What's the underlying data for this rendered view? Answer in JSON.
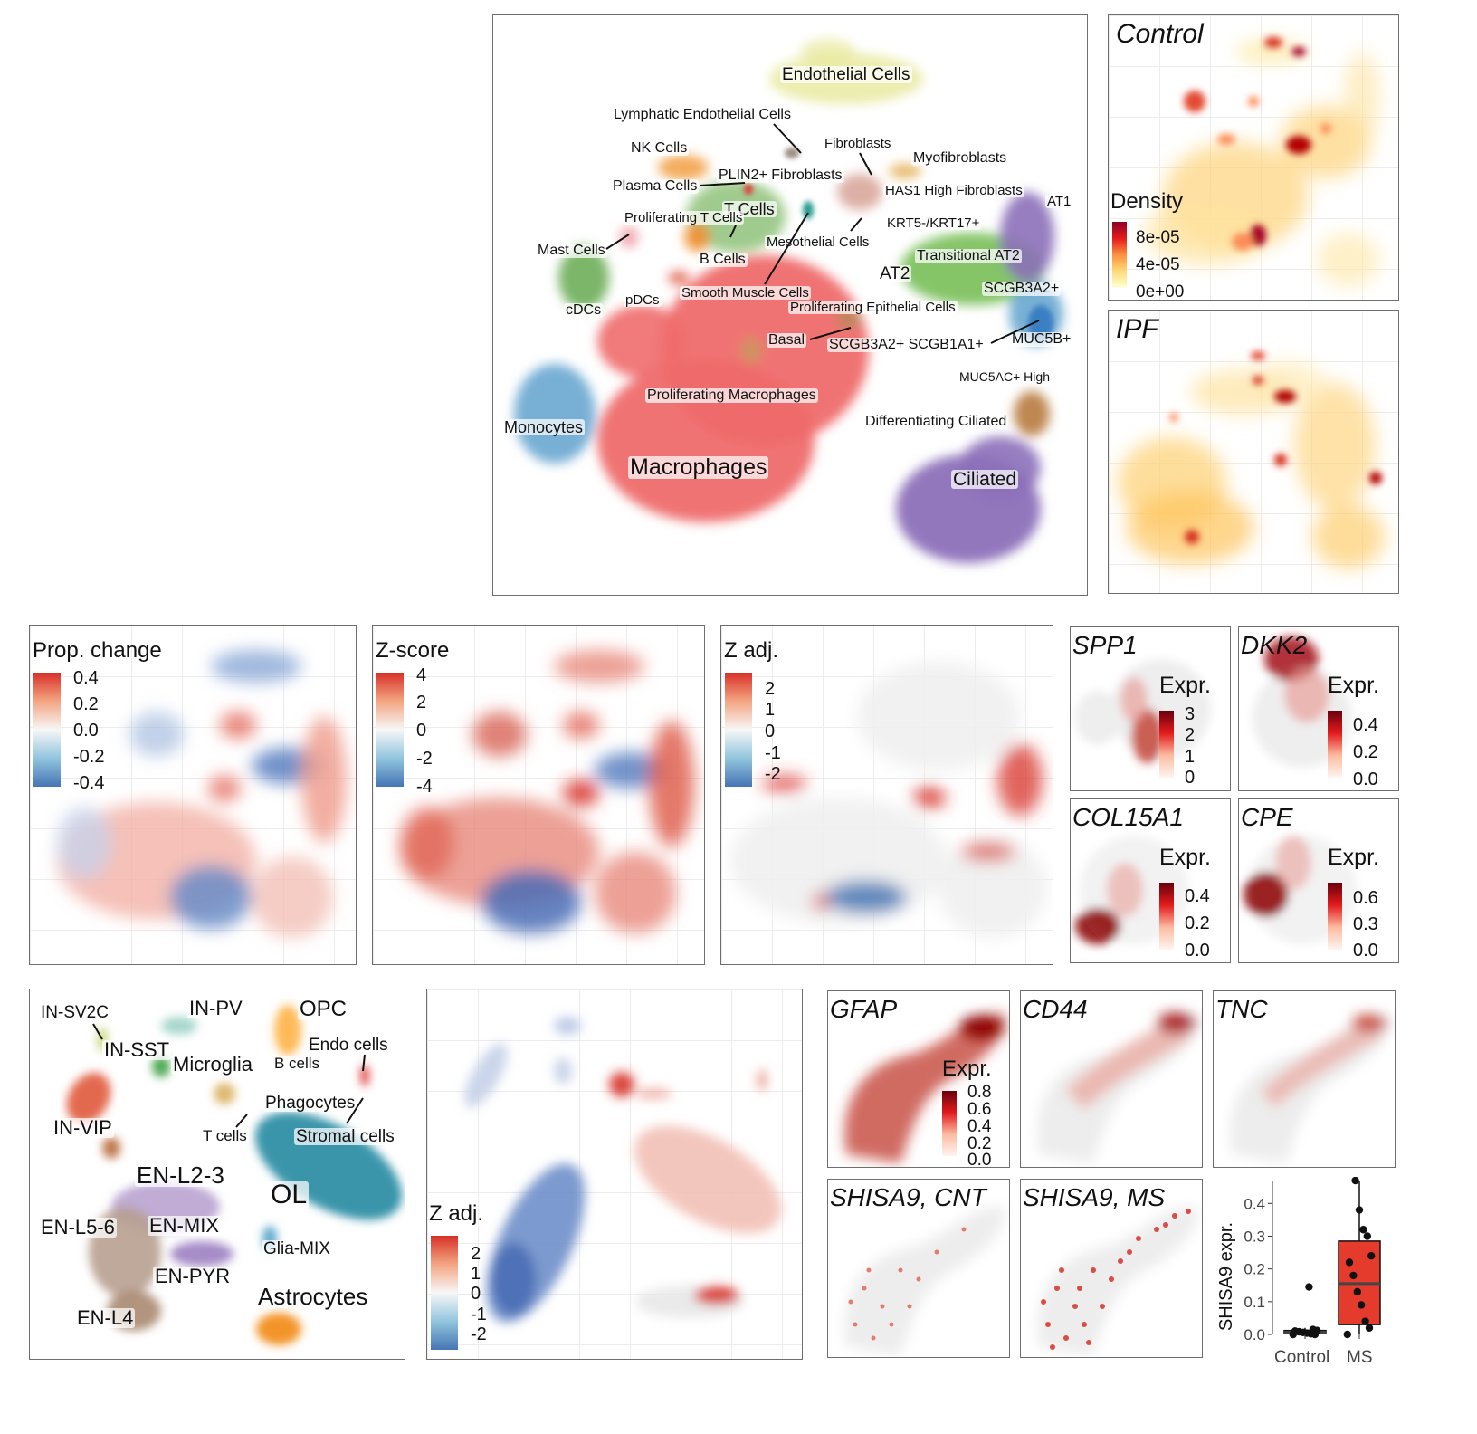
{
  "top_umap": {
    "labels": {
      "endothelial": "Endothelial Cells",
      "lymphatic": "Lymphatic Endothelial Cells",
      "nk": "NK Cells",
      "fibroblasts": "Fibroblasts",
      "myofibroblasts": "Myofibroblasts",
      "plin2": "PLIN2+ Fibroblasts",
      "plasma": "Plasma Cells",
      "has1": "HAS1 High Fibroblasts",
      "at1": "AT1",
      "tcells": "T Cells",
      "prolif_t": "Proliferating T Cells",
      "krt5": "KRT5-/KRT17+",
      "mast": "Mast Cells",
      "mesothelial": "Mesothelial Cells",
      "transitional": "Transitional AT2",
      "bcells": "B Cells",
      "at2": "AT2",
      "smooth": "Smooth Muscle Cells",
      "scgb3a2": "SCGB3A2+",
      "pdcs": "pDCs",
      "cdcs": "cDCs",
      "prolif_epi": "Proliferating Epithelial Cells",
      "basal": "Basal",
      "scgb3a2_scgb1a1": "SCGB3A2+ SCGB1A1+",
      "muc5b": "MUC5B+",
      "muc5ac": "MUC5AC+ High",
      "monocytes": "Monocytes",
      "prolif_mac": "Proliferating Macrophages",
      "diff_ciliated": "Differentiating Ciliated",
      "macrophages": "Macrophages",
      "ciliated": "Ciliated"
    }
  },
  "density_panels": {
    "control_title": "Control",
    "ipf_title": "IPF",
    "legend_title": "Density",
    "legend_ticks": [
      "8e-05",
      "4e-05",
      "0e+00"
    ]
  },
  "mid_panels": {
    "prop": {
      "title": "Prop. change",
      "ticks": [
        "0.4",
        "0.2",
        "0.0",
        "-0.2",
        "-0.4"
      ]
    },
    "z": {
      "title": "Z-score",
      "ticks": [
        "4",
        "2",
        "0",
        "-2",
        "-4"
      ]
    },
    "zadj": {
      "title": "Z adj.",
      "ticks": [
        "2",
        "1",
        "0",
        "-1",
        "-2"
      ]
    }
  },
  "gene_panels": {
    "expr_label": "Expr.",
    "spp1": {
      "title": "SPP1",
      "ticks": [
        "3",
        "2",
        "1",
        "0"
      ]
    },
    "dkk2": {
      "title": "DKK2",
      "ticks": [
        "0.4",
        "0.2",
        "0.0"
      ]
    },
    "col15a1": {
      "title": "COL15A1",
      "ticks": [
        "0.4",
        "0.2",
        "0.0"
      ]
    },
    "cpe": {
      "title": "CPE",
      "ticks": [
        "0.6",
        "0.3",
        "0.0"
      ]
    }
  },
  "brain_umap": {
    "labels": {
      "in_sv2c": "IN-SV2C",
      "in_pv": "IN-PV",
      "opc": "OPC",
      "in_sst": "IN-SST",
      "endo": "Endo cells",
      "microglia": "Microglia",
      "bcells": "B cells",
      "phagocytes": "Phagocytes",
      "in_vip": "IN-VIP",
      "tcells": "T cells",
      "stromal": "Stromal cells",
      "en_l23": "EN-L2-3",
      "ol": "OL",
      "en_l56": "EN-L5-6",
      "en_mix": "EN-MIX",
      "glia_mix": "Glia-MIX",
      "en_pyr": "EN-PYR",
      "astrocytes": "Astrocytes",
      "en_l4": "EN-L4"
    }
  },
  "brain_zadj": {
    "title": "Z adj.",
    "ticks": [
      "2",
      "1",
      "0",
      "-1",
      "-2"
    ]
  },
  "astro_genes": {
    "gfap": {
      "title": "GFAP",
      "legend_title": "Expr.",
      "ticks": [
        "0.8",
        "0.6",
        "0.4",
        "0.2",
        "0.0"
      ]
    },
    "cd44": {
      "title": "CD44"
    },
    "tnc": {
      "title": "TNC"
    },
    "shisa9_cnt": {
      "title": "SHISA9, CNT"
    },
    "shisa9_ms": {
      "title": "SHISA9, MS"
    }
  },
  "chart_data": {
    "type": "box",
    "ylabel": "SHISA9 expr.",
    "categories": [
      "Control",
      "MS"
    ],
    "yticks": [
      "0.0",
      "0.1",
      "0.2",
      "0.3",
      "0.4"
    ],
    "ylim": [
      0,
      0.47
    ],
    "boxes": [
      {
        "name": "Control",
        "q1": 0.003,
        "median": 0.006,
        "q3": 0.012,
        "whisker_low": 0.0,
        "whisker_high": 0.02,
        "points": [
          0.0,
          0.0,
          0.002,
          0.004,
          0.006,
          0.008,
          0.01,
          0.012,
          0.015,
          0.145
        ],
        "color": "#ffffff"
      },
      {
        "name": "MS",
        "q1": 0.03,
        "median": 0.155,
        "q3": 0.285,
        "whisker_low": 0.0,
        "whisker_high": 0.47,
        "points": [
          0.0,
          0.02,
          0.04,
          0.09,
          0.13,
          0.18,
          0.22,
          0.24,
          0.3,
          0.32,
          0.38,
          0.47
        ],
        "color": "#e53b2c"
      }
    ]
  },
  "colors": {
    "red": "#d73027",
    "blue": "#4575b4",
    "dark_red": "#8b0000"
  }
}
